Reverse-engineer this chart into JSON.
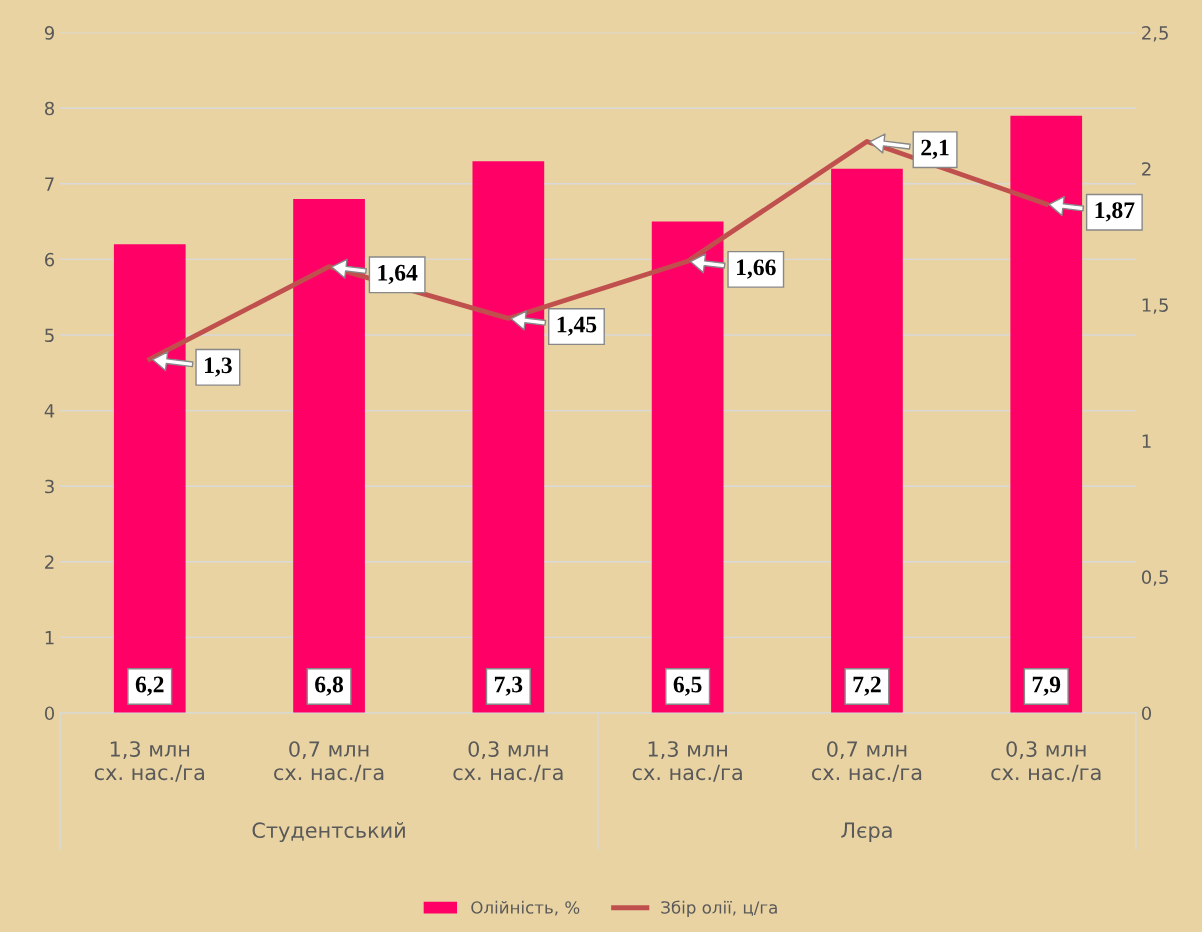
{
  "chart_data": {
    "type": "bar",
    "categories": [
      "1,3 млн сх. нас./га",
      "0,7 млн сх. нас./га",
      "0,3 млн сх. нас./га",
      "1,3 млн сх. нас./га",
      "0,7 млн сх. нас./га",
      "0,3 млн сх. нас./га"
    ],
    "series": [
      {
        "name": "Олійність, %",
        "color": "#ff0066",
        "values": [
          6.2,
          6.8,
          7.3,
          6.5,
          7.2,
          7.9
        ],
        "value_labels": [
          "6,2",
          "6,8",
          "7,3",
          "6,5",
          "7,2",
          "7,9"
        ]
      },
      {
        "name": "Збір олії, ц/га",
        "type": "line",
        "axis": "y2",
        "color": "#c0504d",
        "values": [
          1.3,
          1.64,
          1.45,
          1.66,
          2.1,
          1.87
        ],
        "value_labels": [
          "1,3",
          "1,64",
          "1,45",
          "1,66",
          "2,1",
          "1,87"
        ]
      }
    ],
    "annotations": [
      "Студентський",
      "Лєра"
    ],
    "ylim": [
      0,
      9
    ],
    "yticks": [
      0,
      1,
      2,
      3,
      4,
      5,
      6,
      7,
      8,
      9
    ],
    "y2lim": [
      0,
      2.5
    ],
    "y2ticks": [
      0,
      {
        "value": 0.5,
        "label": "0,5"
      },
      1,
      {
        "value": 1.5,
        "label": "1,5"
      },
      2,
      {
        "value": 2.5,
        "label": "2,5"
      }
    ],
    "grid": "y",
    "legend": "bottom",
    "marker": "none"
  }
}
